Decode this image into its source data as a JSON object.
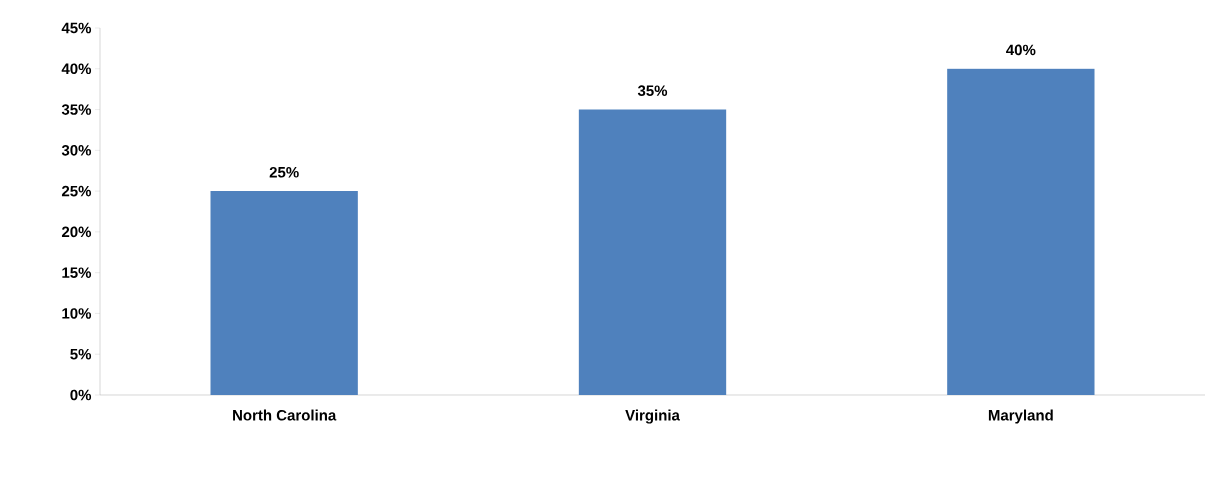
{
  "chart_data": {
    "type": "bar",
    "categories": [
      "North Carolina",
      "Virginia",
      "Maryland"
    ],
    "values": [
      25,
      35,
      40
    ],
    "value_labels": [
      "25%",
      "35%",
      "40%"
    ],
    "color": "#4f81bd",
    "ylim": [
      0,
      45
    ],
    "yticks": [
      {
        "value": 0,
        "label": "0%"
      },
      {
        "value": 5,
        "label": "5%"
      },
      {
        "value": 10,
        "label": "10%"
      },
      {
        "value": 15,
        "label": "15%"
      },
      {
        "value": 20,
        "label": "20%"
      },
      {
        "value": 25,
        "label": "25%"
      },
      {
        "value": 30,
        "label": "30%"
      },
      {
        "value": 35,
        "label": "35%"
      },
      {
        "value": 40,
        "label": "40%"
      },
      {
        "value": 45,
        "label": "45%"
      }
    ]
  }
}
